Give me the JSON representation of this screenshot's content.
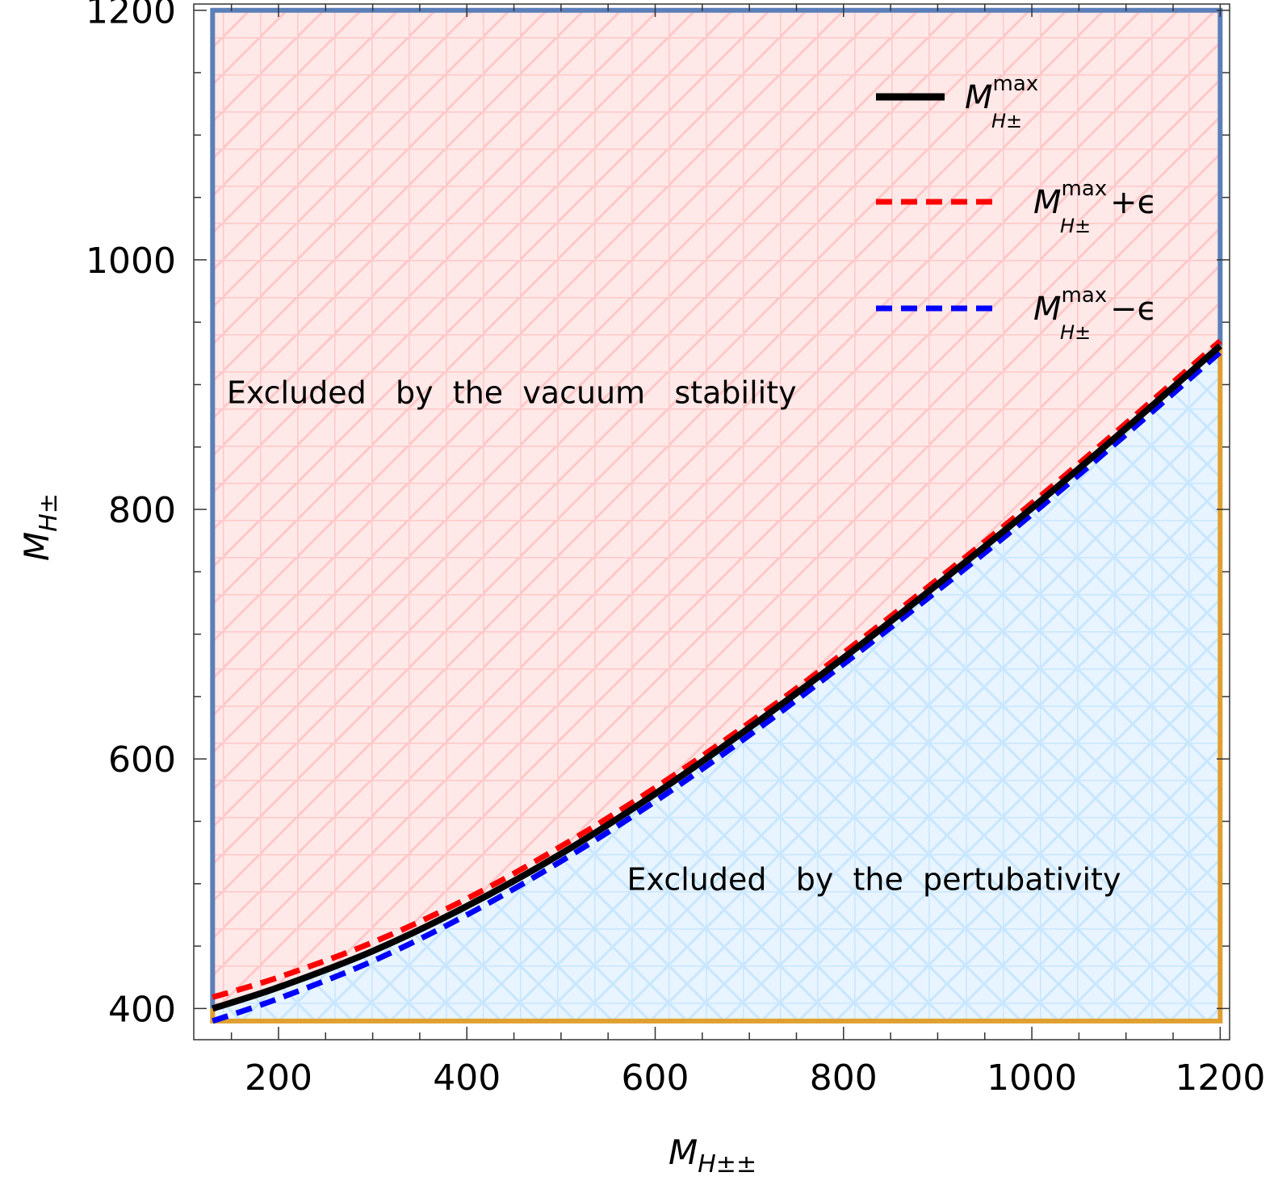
{
  "chart_data": {
    "type": "line",
    "xlabel": {
      "main": "M",
      "sub": "H±±"
    },
    "ylabel": {
      "main": "M",
      "sub": "H±"
    },
    "xlim": [
      110,
      1210
    ],
    "ylim": [
      375,
      1205
    ],
    "xticks": [
      200,
      400,
      600,
      800,
      1000,
      1200
    ],
    "yticks": [
      400,
      600,
      800,
      1000,
      1200
    ],
    "x_minor_step": 50,
    "y_minor_step": 50,
    "grid": false,
    "legend_position": "top-right",
    "regions": [
      {
        "label": "Excluded   by  the  vacuum   stability",
        "color": "#ffe8e8",
        "hatch_color": "#ffc8c8",
        "boundary_color": "#5b7fb8",
        "label_anchor": {
          "x": 145,
          "y": 885
        }
      },
      {
        "label": "Excluded   by  the  pertubativity",
        "color": "#e8f4ff",
        "hatch_color": "#c8e6ff",
        "boundary_color": "#e0a030",
        "label_anchor": {
          "x": 570,
          "y": 495
        }
      }
    ],
    "x_range": [
      130,
      1200
    ],
    "y_top": 1200,
    "y_bottom": 390,
    "series": [
      {
        "legend": {
          "main": "M",
          "sup": "max",
          "sub": "H±",
          "suffix": ""
        },
        "color": "#000000",
        "dash": "solid",
        "x": [
          130,
          200,
          300,
          400,
          500,
          600,
          700,
          800,
          900,
          1000,
          1100,
          1200
        ],
        "y": [
          400,
          417,
          446,
          482,
          524,
          572,
          625,
          681,
          740,
          801,
          865,
          931
        ]
      },
      {
        "legend": {
          "main": "M",
          "sup": "max",
          "sub": "H±",
          "suffix": "+ϵ"
        },
        "color": "#ff0000",
        "dash": "dashed",
        "x": [
          130,
          200,
          300,
          400,
          500,
          600,
          700,
          800,
          900,
          1000,
          1100,
          1200
        ],
        "y": [
          409,
          425,
          453,
          488,
          530,
          577,
          629,
          685,
          744,
          805,
          869,
          935
        ]
      },
      {
        "legend": {
          "main": "M",
          "sup": "max",
          "sub": "H±",
          "suffix": "−ϵ"
        },
        "color": "#0000ff",
        "dash": "dashed",
        "x": [
          130,
          200,
          300,
          400,
          500,
          600,
          700,
          800,
          900,
          1000,
          1100,
          1200
        ],
        "y": [
          390,
          408,
          438,
          475,
          518,
          566,
          619,
          676,
          735,
          796,
          860,
          926
        ]
      }
    ]
  }
}
